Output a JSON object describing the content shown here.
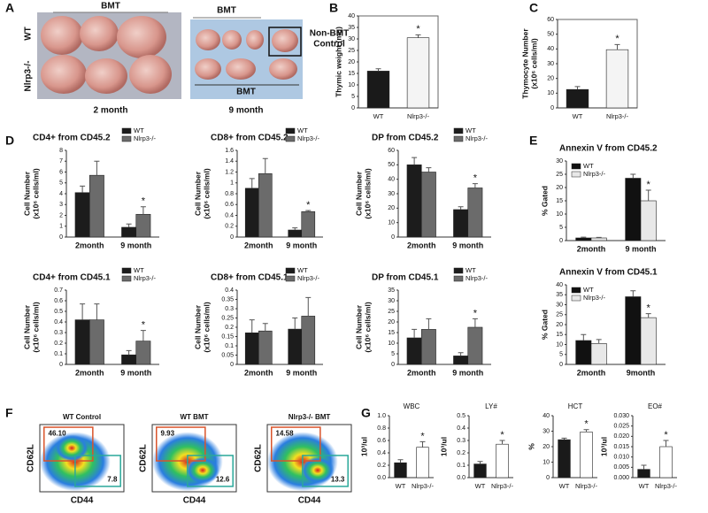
{
  "panels": [
    "A",
    "B",
    "C",
    "D",
    "E",
    "F",
    "G"
  ],
  "photos": {
    "left_bracket": "BMT",
    "row_wt": "WT",
    "row_ko": "Nlrp3-/-",
    "left_caption": "2 month",
    "right_bracket": "BMT",
    "control": [
      "Non-BMT",
      "Control"
    ],
    "right_inner": "BMT",
    "right_caption": "9 month"
  },
  "flow": {
    "xlabel": "CD44",
    "ylabel": "CD62L",
    "plots": [
      {
        "title": "WT Control",
        "upper": "46.10",
        "lower": "7.8"
      },
      {
        "title": "WT BMT",
        "upper": "9.93",
        "lower": "12.6"
      },
      {
        "title": "Nlrp3-/- BMT",
        "upper": "14.58",
        "lower": "13.3"
      }
    ]
  },
  "chart_data": [
    {
      "type": "bar",
      "categories": [
        "WT",
        "Nlrp3-/-"
      ],
      "values": [
        16,
        30.5
      ],
      "errors": [
        1,
        1.3
      ],
      "colors": [
        "#1a1a1a",
        "#f4f4f4"
      ],
      "ylabel": [
        "Thymic weight (mg)"
      ],
      "ylim": [
        0,
        40
      ],
      "yticks": [
        0,
        5,
        10,
        15,
        20,
        25,
        30,
        35,
        40
      ],
      "frame": true,
      "annotation": "*"
    },
    {
      "type": "bar",
      "categories": [
        "WT",
        "Nlrp3-/-"
      ],
      "values": [
        12.5,
        39.5
      ],
      "errors": [
        2,
        3.5
      ],
      "colors": [
        "#1a1a1a",
        "#f4f4f4"
      ],
      "ylabel": [
        "Thymocyte Number",
        "(x10⁶ cells/ml)"
      ],
      "ylim": [
        0,
        60
      ],
      "yticks": [
        0,
        10,
        20,
        30,
        40,
        50,
        60
      ],
      "frame": true,
      "annotation": "*"
    },
    {
      "type": "bar",
      "title": "CD4+ from CD45.2",
      "categories": [
        "2month",
        "9 month"
      ],
      "series": [
        {
          "name": "WT",
          "color": "#1c1c1c",
          "values": [
            4.1,
            0.9
          ],
          "errors": [
            0.6,
            0.3
          ]
        },
        {
          "name": "Nlrp3-/-",
          "color": "#6b6b6b",
          "values": [
            5.7,
            2.1
          ],
          "errors": [
            1.3,
            0.7
          ]
        }
      ],
      "ylabel": [
        "Cell Number",
        "(x10⁶ cells/ml)"
      ],
      "ylim": [
        0,
        8
      ],
      "yticks": [
        0,
        1,
        2,
        3,
        4,
        5,
        6,
        7,
        8
      ],
      "legend": "top-right",
      "annotation": "*"
    },
    {
      "type": "bar",
      "title": "CD8+ from CD45.2",
      "categories": [
        "2month",
        "9 month"
      ],
      "series": [
        {
          "name": "WT",
          "color": "#1c1c1c",
          "values": [
            0.9,
            0.13
          ],
          "errors": [
            0.18,
            0.04
          ]
        },
        {
          "name": "Nlrp3-/-",
          "color": "#6b6b6b",
          "values": [
            1.17,
            0.47
          ],
          "errors": [
            0.28,
            0.02
          ]
        }
      ],
      "ylabel": [
        "Cell Number",
        "(x10⁶ cells/ml)"
      ],
      "ylim": [
        0,
        1.6
      ],
      "yticks": [
        0,
        0.2,
        0.4,
        0.6,
        0.8,
        1,
        1.2,
        1.4,
        1.6
      ],
      "legend": "top-right",
      "annotation": "*"
    },
    {
      "type": "bar",
      "title": "DP from CD45.2",
      "categories": [
        "2month",
        "9 month"
      ],
      "series": [
        {
          "name": "WT",
          "color": "#1c1c1c",
          "values": [
            50,
            19
          ],
          "errors": [
            5,
            2
          ]
        },
        {
          "name": "Nlrp3-/-",
          "color": "#6b6b6b",
          "values": [
            45,
            34
          ],
          "errors": [
            3,
            3
          ]
        }
      ],
      "ylabel": [
        "Cell Number",
        "(x10⁶ cells/ml)"
      ],
      "ylim": [
        0,
        60
      ],
      "yticks": [
        0,
        10,
        20,
        30,
        40,
        50,
        60
      ],
      "legend": "top-right",
      "annotation": "*"
    },
    {
      "type": "bar",
      "title": "CD4+ from CD45.1",
      "categories": [
        "2month",
        "9 month"
      ],
      "series": [
        {
          "name": "WT",
          "color": "#1c1c1c",
          "values": [
            0.42,
            0.09
          ],
          "errors": [
            0.15,
            0.04
          ]
        },
        {
          "name": "Nlrp3-/-",
          "color": "#6b6b6b",
          "values": [
            0.42,
            0.22
          ],
          "errors": [
            0.15,
            0.1
          ]
        }
      ],
      "ylabel": [
        "Cell Number",
        "(x10⁶ cells/ml)"
      ],
      "ylim": [
        0,
        0.7
      ],
      "yticks": [
        0,
        0.1,
        0.2,
        0.3,
        0.4,
        0.5,
        0.6,
        0.7
      ],
      "legend": "top-right",
      "annotation": "*"
    },
    {
      "type": "bar",
      "title": "CD8+ from CD45.1",
      "categories": [
        "2month",
        "9 month"
      ],
      "series": [
        {
          "name": "WT",
          "color": "#1c1c1c",
          "values": [
            0.17,
            0.19
          ],
          "errors": [
            0.07,
            0.06
          ]
        },
        {
          "name": "Nlrp3-/-",
          "color": "#6b6b6b",
          "values": [
            0.18,
            0.26
          ],
          "errors": [
            0.04,
            0.1
          ]
        }
      ],
      "ylabel": [
        "Cell Number",
        "(x10⁶ cells/ml)"
      ],
      "ylim": [
        0,
        0.4
      ],
      "yticks": [
        0,
        0.05,
        0.1,
        0.15,
        0.2,
        0.25,
        0.3,
        0.35,
        0.4
      ],
      "legend": "top-right"
    },
    {
      "type": "bar",
      "title": "DP from CD45.1",
      "categories": [
        "2month",
        "9 month"
      ],
      "series": [
        {
          "name": "WT",
          "color": "#1c1c1c",
          "values": [
            12.5,
            4
          ],
          "errors": [
            4,
            1.5
          ]
        },
        {
          "name": "Nlrp3-/-",
          "color": "#6b6b6b",
          "values": [
            16.5,
            17.5
          ],
          "errors": [
            5,
            4
          ]
        }
      ],
      "ylabel": [
        "Cell Number",
        "(x10⁶ cells/ml)"
      ],
      "ylim": [
        0,
        35
      ],
      "yticks": [
        0,
        5,
        10,
        15,
        20,
        25,
        30,
        35
      ],
      "legend": "top-right",
      "annotation": "*"
    },
    {
      "type": "bar",
      "title": "Annexin V from CD45.2",
      "categories": [
        "2month",
        "9 month"
      ],
      "series": [
        {
          "name": "WT",
          "color": "#111111",
          "values": [
            1,
            23.5
          ],
          "errors": [
            0.3,
            1.5
          ]
        },
        {
          "name": "Nlrp3-/-",
          "color": "#e8e8e8",
          "values": [
            1,
            15
          ],
          "errors": [
            0.2,
            4
          ]
        }
      ],
      "ylabel": [
        "% Gated"
      ],
      "ylim": [
        0,
        30
      ],
      "yticks": [
        0,
        5,
        10,
        15,
        20,
        25,
        30
      ],
      "legend": "top-left",
      "annotation": "*"
    },
    {
      "type": "bar",
      "title": "Annexin V from CD45.1",
      "categories": [
        "2month",
        "9month"
      ],
      "series": [
        {
          "name": "WT",
          "color": "#111111",
          "values": [
            12,
            34
          ],
          "errors": [
            3,
            3
          ]
        },
        {
          "name": "Nlrp3-/-",
          "color": "#e8e8e8",
          "values": [
            10.5,
            23.5
          ],
          "errors": [
            2,
            2
          ]
        }
      ],
      "ylabel": [
        "% Gated"
      ],
      "ylim": [
        0,
        40
      ],
      "yticks": [
        0,
        5,
        10,
        15,
        20,
        25,
        30,
        35,
        40
      ],
      "legend": "top-left",
      "annotation": "*"
    },
    {
      "type": "bar",
      "title": "WBC",
      "categories": [
        "WT",
        "Nlrp3-/-"
      ],
      "values": [
        0.24,
        0.49
      ],
      "errors": [
        0.05,
        0.09
      ],
      "colors": [
        "#1a1a1a",
        "#ffffff"
      ],
      "ylabel": [
        "10³/ul"
      ],
      "ylim": [
        0,
        1
      ],
      "yticks": [
        {
          "value": 0,
          "label": "0.0"
        },
        0.2,
        0.4,
        0.6,
        0.8,
        {
          "value": 1,
          "label": "1.0"
        }
      ],
      "annotation": "*"
    },
    {
      "type": "bar",
      "title": "LY#",
      "categories": [
        "WT",
        "Nlrp3-/-"
      ],
      "values": [
        0.11,
        0.27
      ],
      "errors": [
        0.02,
        0.03
      ],
      "colors": [
        "#1a1a1a",
        "#ffffff"
      ],
      "ylabel": [
        "10³/ul"
      ],
      "ylim": [
        0,
        0.5
      ],
      "yticks": [
        {
          "value": 0,
          "label": "0.0"
        },
        0.1,
        0.2,
        0.3,
        0.4,
        0.5
      ],
      "annotation": "*"
    },
    {
      "type": "bar",
      "title": "HCT",
      "categories": [
        "WT",
        "Nlrp3-/-"
      ],
      "values": [
        24.5,
        29.5
      ],
      "errors": [
        1,
        1.5
      ],
      "colors": [
        "#1a1a1a",
        "#ffffff"
      ],
      "ylabel": [
        "%"
      ],
      "ylim": [
        0,
        40
      ],
      "yticks": [
        0,
        10,
        20,
        30,
        40
      ],
      "annotation": "*"
    },
    {
      "type": "bar",
      "title": "EO#",
      "categories": [
        "WT",
        "Nlrp3-/-"
      ],
      "values": [
        0.004,
        0.015
      ],
      "errors": [
        0.002,
        0.003
      ],
      "colors": [
        "#1a1a1a",
        "#ffffff"
      ],
      "ylabel": [
        "10³/ul"
      ],
      "ylim": [
        0,
        0.03
      ],
      "yticks": [
        {
          "value": 0,
          "label": "0.000"
        },
        0.005,
        {
          "value": 0.01,
          "label": "0.010"
        },
        0.015,
        {
          "value": 0.02,
          "label": "0.020"
        },
        0.025,
        {
          "value": 0.03,
          "label": "0.030"
        }
      ],
      "annotation": "*"
    }
  ]
}
